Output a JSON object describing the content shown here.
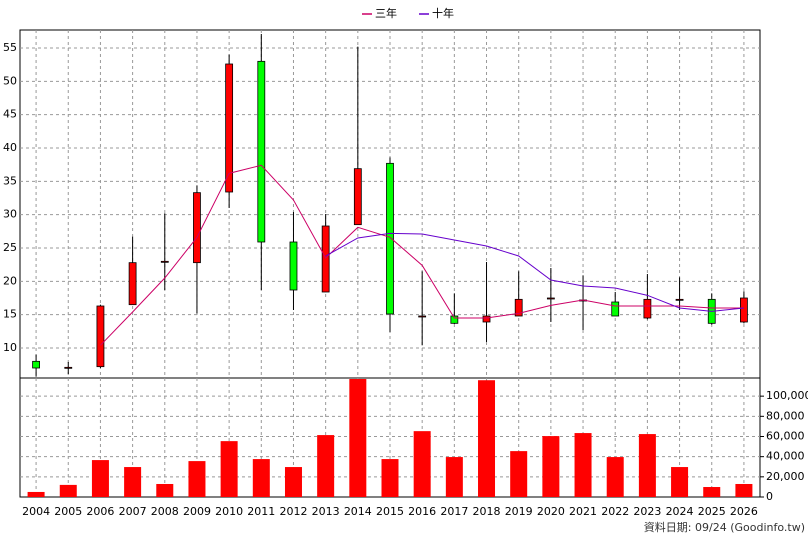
{
  "chart_data": {
    "type": "candlestick",
    "categories": [
      "2004",
      "2005",
      "2006",
      "2007",
      "2008",
      "2009",
      "2010",
      "2011",
      "2012",
      "2013",
      "2014",
      "2015",
      "2016",
      "2017",
      "2018",
      "2019",
      "2020",
      "2021",
      "2022",
      "2023",
      "2024",
      "2025",
      "2026"
    ],
    "candles": {
      "open": [
        8.0,
        7.0,
        7.2,
        16.5,
        22.9,
        22.8,
        33.4,
        53.0,
        25.9,
        18.4,
        28.5,
        37.7,
        14.8,
        14.8,
        13.9,
        14.8,
        17.5,
        17.2,
        16.9,
        14.5,
        17.3,
        17.3,
        13.9
      ],
      "high": [
        9.0,
        7.9,
        16.5,
        26.7,
        30.2,
        34.4,
        54.0,
        57.1,
        30.4,
        30.1,
        55.2,
        38.6,
        21.5,
        18.2,
        22.9,
        21.5,
        22.0,
        20.9,
        18.4,
        21.1,
        20.6,
        18.2,
        18.5
      ],
      "low": [
        5.7,
        6.1,
        7.0,
        16.5,
        18.7,
        15.2,
        31.0,
        18.7,
        15.7,
        18.4,
        28.5,
        12.4,
        10.4,
        13.6,
        10.9,
        14.8,
        13.9,
        12.7,
        14.8,
        14.3,
        15.7,
        13.5,
        13.7
      ],
      "close": [
        7.0,
        7.1,
        16.3,
        22.8,
        23.0,
        33.3,
        52.6,
        25.9,
        18.7,
        28.3,
        36.9,
        15.1,
        14.8,
        13.7,
        14.8,
        17.3,
        17.5,
        17.2,
        14.8,
        17.3,
        17.3,
        13.7,
        17.5
      ],
      "up_color": "#ff0000",
      "down_color": "#00ff00"
    },
    "series": [
      {
        "name": "三年",
        "color": "#cc0066",
        "values": [
          null,
          null,
          10.4,
          15.4,
          20.5,
          26.6,
          36.2,
          37.4,
          32.2,
          23.5,
          28.1,
          26.6,
          22.4,
          14.5,
          14.5,
          15.2,
          16.4,
          17.2,
          16.3,
          16.3,
          16.3,
          16.0,
          16.0
        ]
      },
      {
        "name": "十年",
        "color": "#6600cc",
        "values": [
          null,
          null,
          null,
          null,
          null,
          null,
          null,
          null,
          null,
          23.8,
          26.5,
          27.2,
          27.1,
          26.2,
          25.3,
          23.8,
          20.2,
          19.3,
          19.0,
          17.9,
          16.0,
          15.5,
          16.0
        ]
      }
    ],
    "ylim": [
      5.5,
      57.7
    ],
    "yticks": [
      10,
      15,
      20,
      25,
      30,
      35,
      40,
      45,
      50,
      55
    ],
    "volume": {
      "color": "#ff0000",
      "values": [
        5000,
        12000,
        36600,
        29700,
        12900,
        35600,
        55400,
        37600,
        29700,
        61400,
        117000,
        37600,
        65300,
        39600,
        115800,
        45500,
        60400,
        63400,
        39600,
        62400,
        29700,
        9900,
        12900
      ],
      "ylim": [
        0,
        118000
      ],
      "yticks": [
        0,
        {
          "value": 20000,
          "label": "20,000"
        },
        {
          "value": 40000,
          "label": "40,000"
        },
        {
          "value": 60000,
          "label": "60,000"
        },
        {
          "value": 80000,
          "label": "80,000"
        },
        {
          "value": 100000,
          "label": "100,000"
        }
      ]
    },
    "grid": true,
    "legend": "top",
    "note": "資料日期: 09/24 (Goodinfo.tw)"
  }
}
